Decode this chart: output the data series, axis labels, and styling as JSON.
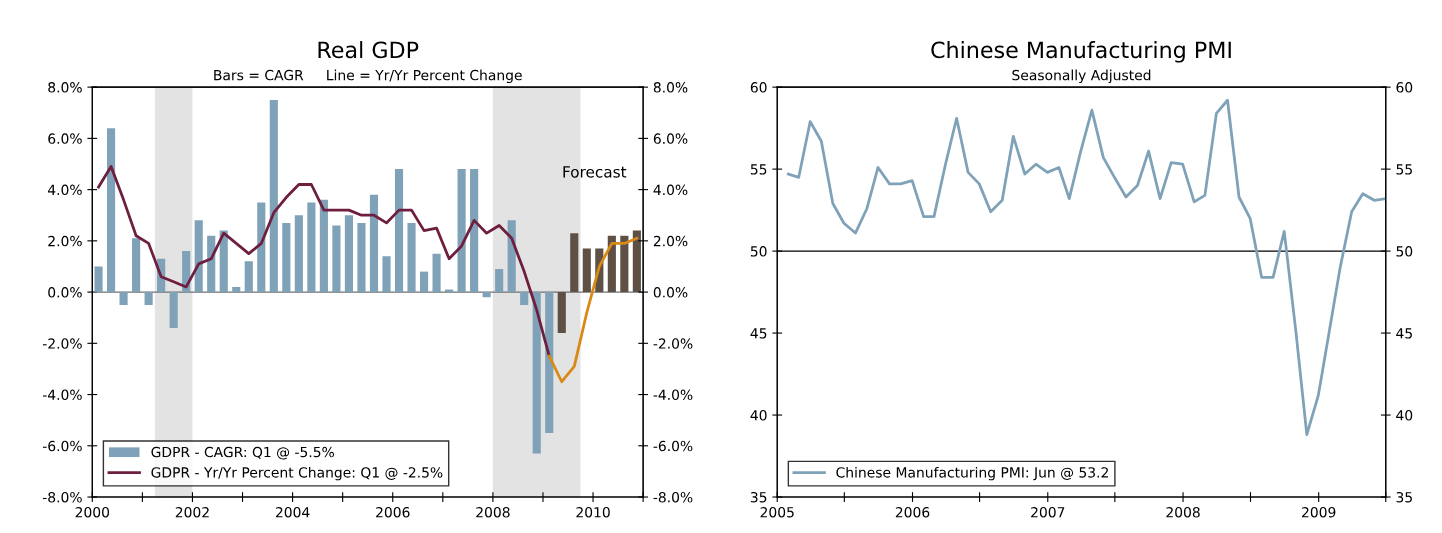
{
  "chart_data": [
    {
      "type": "bar",
      "title": "Real GDP",
      "subtitle": "Bars = CAGR     Line = Yr/Yr Percent Change",
      "x": [
        2000.125,
        2000.375,
        2000.625,
        2000.875,
        2001.125,
        2001.375,
        2001.625,
        2001.875,
        2002.125,
        2002.375,
        2002.625,
        2002.875,
        2003.125,
        2003.375,
        2003.625,
        2003.875,
        2004.125,
        2004.375,
        2004.625,
        2004.875,
        2005.125,
        2005.375,
        2005.625,
        2005.875,
        2006.125,
        2006.375,
        2006.625,
        2006.875,
        2007.125,
        2007.375,
        2007.625,
        2007.875,
        2008.125,
        2008.375,
        2008.625,
        2008.875,
        2009.125,
        2009.375,
        2009.625,
        2009.875,
        2010.125,
        2010.375,
        2010.625,
        2010.875
      ],
      "series": [
        {
          "type": "bar",
          "name": "GDPR - CAGR: Q1 @ -5.5%",
          "color": "#7fa2b8",
          "colors": [
            "#7fa2b8",
            "#7fa2b8",
            "#7fa2b8",
            "#7fa2b8",
            "#7fa2b8",
            "#7fa2b8",
            "#7fa2b8",
            "#7fa2b8",
            "#7fa2b8",
            "#7fa2b8",
            "#7fa2b8",
            "#7fa2b8",
            "#7fa2b8",
            "#7fa2b8",
            "#7fa2b8",
            "#7fa2b8",
            "#7fa2b8",
            "#7fa2b8",
            "#7fa2b8",
            "#7fa2b8",
            "#7fa2b8",
            "#7fa2b8",
            "#7fa2b8",
            "#7fa2b8",
            "#7fa2b8",
            "#7fa2b8",
            "#7fa2b8",
            "#7fa2b8",
            "#7fa2b8",
            "#7fa2b8",
            "#7fa2b8",
            "#7fa2b8",
            "#7fa2b8",
            "#7fa2b8",
            "#7fa2b8",
            "#7fa2b8",
            "#7fa2b8",
            "#5e5044",
            "#5e5044",
            "#5e5044",
            "#5e5044",
            "#5e5044",
            "#5e5044",
            "#5e5044"
          ],
          "values": [
            1.0,
            6.4,
            -0.5,
            2.1,
            -0.5,
            1.3,
            -1.4,
            1.6,
            2.8,
            2.2,
            2.4,
            0.2,
            1.2,
            3.5,
            7.5,
            2.7,
            3.0,
            3.5,
            3.6,
            2.6,
            3.0,
            2.7,
            3.8,
            1.4,
            4.8,
            2.7,
            0.8,
            1.5,
            0.1,
            4.8,
            4.8,
            -0.2,
            0.9,
            2.8,
            -0.5,
            -6.3,
            -5.5,
            -1.6,
            2.3,
            1.7,
            1.7,
            2.2,
            2.2,
            2.4
          ]
        },
        {
          "type": "line",
          "name": "GDPR - Yr/Yr Percent Change: Q1 @ -2.5%",
          "color": "#6e1f3f",
          "x": [
            2000.125,
            2000.375,
            2000.625,
            2000.875,
            2001.125,
            2001.375,
            2001.625,
            2001.875,
            2002.125,
            2002.375,
            2002.625,
            2002.875,
            2003.125,
            2003.375,
            2003.625,
            2003.875,
            2004.125,
            2004.375,
            2004.625,
            2004.875,
            2005.125,
            2005.375,
            2005.625,
            2005.875,
            2006.125,
            2006.375,
            2006.625,
            2006.875,
            2007.125,
            2007.375,
            2007.625,
            2007.875,
            2008.125,
            2008.375,
            2008.625,
            2008.875,
            2009.125
          ],
          "values": [
            4.1,
            4.9,
            3.6,
            2.2,
            1.9,
            0.6,
            0.4,
            0.2,
            1.1,
            1.3,
            2.3,
            1.9,
            1.5,
            1.9,
            3.1,
            3.7,
            4.2,
            4.2,
            3.2,
            3.2,
            3.2,
            3.0,
            3.0,
            2.7,
            3.2,
            3.2,
            2.4,
            2.5,
            1.3,
            1.8,
            2.8,
            2.3,
            2.6,
            2.1,
            0.8,
            -0.7,
            -2.5
          ]
        },
        {
          "type": "line",
          "color": "#d98a16",
          "x": [
            2009.125,
            2009.375,
            2009.625,
            2009.875,
            2010.125,
            2010.375,
            2010.625,
            2010.875
          ],
          "values": [
            -2.5,
            -3.5,
            -2.9,
            -0.8,
            1.0,
            1.9,
            1.9,
            2.1
          ]
        }
      ],
      "xlim": [
        2000,
        2011
      ],
      "xticks": [
        2000,
        {
          "value": 2001,
          "label": null
        },
        2002,
        {
          "value": 2003,
          "label": null
        },
        2004,
        {
          "value": 2005,
          "label": null
        },
        2006,
        {
          "value": 2007,
          "label": null
        },
        2008,
        {
          "value": 2009,
          "label": null
        },
        2010,
        {
          "value": 2011,
          "label": null
        }
      ],
      "ylim": [
        -8,
        8
      ],
      "yticks": [
        {
          "value": -8,
          "label": "-8.0%"
        },
        {
          "value": -6,
          "label": "-6.0%"
        },
        {
          "value": -4,
          "label": "-4.0%"
        },
        {
          "value": -2,
          "label": "-2.0%"
        },
        {
          "value": 0,
          "label": "0.0%"
        },
        {
          "value": 2,
          "label": "2.0%"
        },
        {
          "value": 4,
          "label": "4.0%"
        },
        {
          "value": 6,
          "label": "6.0%"
        },
        {
          "value": 8,
          "label": "8.0%"
        }
      ],
      "y2lim": [
        -8,
        8
      ],
      "y2ticks": [
        {
          "value": -8,
          "label": "-8.0%"
        },
        {
          "value": -6,
          "label": "-6.0%"
        },
        {
          "value": -4,
          "label": "-4.0%"
        },
        {
          "value": -2,
          "label": "-2.0%"
        },
        {
          "value": 0,
          "label": "0.0%"
        },
        {
          "value": 2,
          "label": "2.0%"
        },
        {
          "value": 4,
          "label": "4.0%"
        },
        {
          "value": 6,
          "label": "6.0%"
        },
        {
          "value": 8,
          "label": "8.0%"
        }
      ],
      "bands": [
        {
          "axis": "x",
          "from": 2001.25,
          "to": 2002.0,
          "color": "#e3e3e3"
        },
        {
          "axis": "x",
          "from": 2008.0,
          "to": 2009.75,
          "color": "#e3e3e3"
        }
      ],
      "ref_lines": [
        {
          "axis": "y",
          "value": 0,
          "color": "#707070"
        }
      ],
      "annotations": [
        "Forecast"
      ],
      "legend": "bottom left",
      "grid": false
    },
    {
      "type": "line",
      "title": "Chinese Manufacturing PMI",
      "subtitle": "Seasonally Adjusted",
      "x": [
        "2005-01-31",
        "2005-02-28",
        "2005-03-31",
        "2005-04-30",
        "2005-05-31",
        "2005-06-30",
        "2005-07-31",
        "2005-08-31",
        "2005-09-30",
        "2005-10-31",
        "2005-11-30",
        "2005-12-31",
        "2006-01-31",
        "2006-02-28",
        "2006-03-31",
        "2006-04-30",
        "2006-05-31",
        "2006-06-30",
        "2006-07-31",
        "2006-08-31",
        "2006-09-30",
        "2006-10-31",
        "2006-11-30",
        "2006-12-31",
        "2007-01-31",
        "2007-02-28",
        "2007-03-31",
        "2007-04-30",
        "2007-05-31",
        "2007-06-30",
        "2007-07-31",
        "2007-08-31",
        "2007-09-30",
        "2007-10-31",
        "2007-11-30",
        "2007-12-31",
        "2008-01-31",
        "2008-02-29",
        "2008-03-31",
        "2008-04-30",
        "2008-05-31",
        "2008-06-30",
        "2008-07-31",
        "2008-08-31",
        "2008-09-30",
        "2008-10-31",
        "2008-11-30",
        "2008-12-31",
        "2009-01-31",
        "2009-02-28",
        "2009-03-31",
        "2009-04-30",
        "2009-05-31",
        "2009-06-30"
      ],
      "series": [
        {
          "name": "Chinese Manufacturing PMI: Jun @ 53.2",
          "color": "#7fa2b8",
          "values": [
            54.7,
            54.5,
            57.9,
            56.7,
            52.9,
            51.7,
            51.1,
            52.6,
            55.1,
            54.1,
            54.1,
            54.3,
            52.1,
            52.1,
            55.3,
            58.1,
            54.8,
            54.1,
            52.4,
            53.1,
            57.0,
            54.7,
            55.3,
            54.8,
            55.1,
            53.2,
            56.1,
            58.6,
            55.7,
            54.5,
            53.3,
            54.0,
            56.1,
            53.2,
            55.4,
            55.3,
            53.0,
            53.4,
            58.4,
            59.2,
            53.3,
            52.0,
            48.4,
            48.4,
            51.2,
            45.2,
            38.8,
            41.2,
            45.3,
            49.0,
            52.4,
            53.5,
            53.1,
            53.2
          ]
        }
      ],
      "xlim": [
        "2005",
        "2009-07"
      ],
      "xticks": [
        "2005",
        {
          "value": "2005-07",
          "label": null
        },
        "2006",
        {
          "value": "2006-07",
          "label": null
        },
        "2007",
        {
          "value": "2007-07",
          "label": null
        },
        "2008",
        {
          "value": "2008-07",
          "label": null
        },
        "2009",
        {
          "value": "2009-07",
          "label": null
        }
      ],
      "ylim": [
        35,
        60
      ],
      "yticks": [
        35,
        40,
        45,
        50,
        55,
        60
      ],
      "y2lim": [
        35,
        60
      ],
      "y2ticks": [
        35,
        40,
        45,
        50,
        55,
        60
      ],
      "ref_lines": [
        {
          "axis": "y",
          "value": 50,
          "color": "#000000"
        }
      ],
      "legend": "bottom left",
      "grid": false
    }
  ]
}
